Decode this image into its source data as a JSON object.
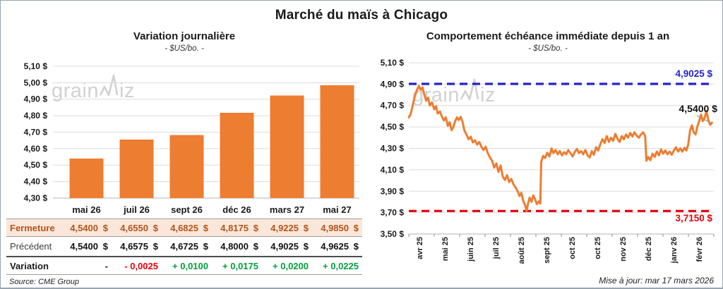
{
  "main_title": "Marché du maïs à Chicago",
  "watermark": {
    "prefix": "grain",
    "suffix": "iz"
  },
  "source": "Source: CME Group",
  "updated": "Mise à jour: mar 17 mars 2026",
  "colors": {
    "bar": "#ED7D31",
    "line": "#ED7D31",
    "high": "#2323CB",
    "low": "#E8000D",
    "up": "#00A03C",
    "down": "#E8000D",
    "close_bg": "#FBE7DA",
    "close_text": "#B3541A",
    "grid": "#DCDCDC",
    "axis": "#B3B3B3"
  },
  "table": {
    "columns": [
      "mai 26",
      "juil 26",
      "sept 26",
      "déc 26",
      "mars 27",
      "mai 27"
    ],
    "rows": [
      {
        "label": "Fermeture",
        "style": "close",
        "values": [
          "4,5400 $",
          "4,6550 $",
          "4,6825 $",
          "4,8175 $",
          "4,9225 $",
          "4,9850 $"
        ]
      },
      {
        "label": "Précédent",
        "style": "prev",
        "values": [
          "4,5400 $",
          "4,6575 $",
          "4,6725 $",
          "4,8000 $",
          "4,9025 $",
          "4,9625 $"
        ]
      },
      {
        "label": "Variation",
        "style": "var",
        "values": [
          "-",
          "- 0,0025",
          "+ 0,0100",
          "+ 0,0175",
          "+ 0,0200",
          "+ 0,0225"
        ],
        "value_styles": [
          "neutral",
          "down",
          "up",
          "up",
          "up",
          "up"
        ]
      }
    ]
  },
  "chart_data": [
    {
      "type": "bar",
      "title": "Variation journalière",
      "subtitle": "- $US/bo. -",
      "categories": [
        "mai 26",
        "juil 26",
        "sept 26",
        "déc 26",
        "mars 27",
        "mai 27"
      ],
      "values": [
        4.54,
        4.655,
        4.6825,
        4.8175,
        4.9225,
        4.985
      ],
      "ylim": [
        4.3,
        5.1
      ],
      "grid": true,
      "yticks": [
        [
          5.1,
          "5,10 $"
        ],
        [
          5.0,
          "5,00 $"
        ],
        [
          4.9,
          "4,90 $"
        ],
        [
          4.8,
          "4,80 $"
        ],
        [
          4.7,
          "4,70 $"
        ],
        [
          4.6,
          "4,60 $"
        ],
        [
          4.5,
          "4,50 $"
        ],
        [
          4.4,
          "4,40 $"
        ],
        [
          4.3,
          "4,30 $"
        ]
      ]
    },
    {
      "type": "line",
      "title": "Comportement échéance immédiate depuis 1 an",
      "subtitle": "- $US/bo. -",
      "x_labels": [
        "avr 25",
        "mai 25",
        "juin 25",
        "juil 25",
        "août 25",
        "sept 25",
        "oct 25",
        "oct 25",
        "nov 25",
        "déc 25",
        "janv 26",
        "févr 26"
      ],
      "ylim": [
        3.5,
        5.1
      ],
      "grid": true,
      "yticks": [
        [
          5.1,
          "5,10 $"
        ],
        [
          4.9,
          "4,90 $"
        ],
        [
          4.7,
          "4,70 $"
        ],
        [
          4.5,
          "4,50 $"
        ],
        [
          4.3,
          "4,30 $"
        ],
        [
          4.1,
          "4,10 $"
        ],
        [
          3.9,
          "3,90 $"
        ],
        [
          3.7,
          "3,70 $"
        ],
        [
          3.5,
          "3,50 $"
        ]
      ],
      "ref_lines": [
        {
          "value": 4.9025,
          "label": "4,9025 $",
          "role": "high"
        },
        {
          "value": 3.715,
          "label": "3,7150 $",
          "role": "low"
        }
      ],
      "last_value": 4.54,
      "last_label": "4,5400 $",
      "points": [
        [
          0.0,
          4.59
        ],
        [
          0.006,
          4.62
        ],
        [
          0.012,
          4.69
        ],
        [
          0.018,
          4.77
        ],
        [
          0.026,
          4.84
        ],
        [
          0.033,
          4.885
        ],
        [
          0.039,
          4.845
        ],
        [
          0.045,
          4.87
        ],
        [
          0.051,
          4.8
        ],
        [
          0.057,
          4.745
        ],
        [
          0.063,
          4.775
        ],
        [
          0.069,
          4.7
        ],
        [
          0.076,
          4.73
        ],
        [
          0.083,
          4.665
        ],
        [
          0.089,
          4.695
        ],
        [
          0.095,
          4.625
        ],
        [
          0.102,
          4.645
        ],
        [
          0.108,
          4.6
        ],
        [
          0.115,
          4.56
        ],
        [
          0.121,
          4.59
        ],
        [
          0.128,
          4.51
        ],
        [
          0.134,
          4.545
        ],
        [
          0.14,
          4.47
        ],
        [
          0.146,
          4.5
        ],
        [
          0.152,
          4.555
        ],
        [
          0.158,
          4.59
        ],
        [
          0.164,
          4.565
        ],
        [
          0.17,
          4.595
        ],
        [
          0.176,
          4.55
        ],
        [
          0.182,
          4.47
        ],
        [
          0.189,
          4.43
        ],
        [
          0.196,
          4.385
        ],
        [
          0.203,
          4.41
        ],
        [
          0.21,
          4.355
        ],
        [
          0.217,
          4.375
        ],
        [
          0.224,
          4.335
        ],
        [
          0.231,
          4.36
        ],
        [
          0.238,
          4.315
        ],
        [
          0.245,
          4.285
        ],
        [
          0.252,
          4.315
        ],
        [
          0.259,
          4.255
        ],
        [
          0.266,
          4.215
        ],
        [
          0.273,
          4.185
        ],
        [
          0.28,
          4.12
        ],
        [
          0.287,
          4.16
        ],
        [
          0.294,
          4.08
        ],
        [
          0.301,
          4.14
        ],
        [
          0.308,
          4.035
        ],
        [
          0.315,
          4.005
        ],
        [
          0.322,
          4.05
        ],
        [
          0.329,
          3.985
        ],
        [
          0.336,
          4.015
        ],
        [
          0.343,
          3.965
        ],
        [
          0.35,
          3.935
        ],
        [
          0.357,
          3.9
        ],
        [
          0.363,
          3.855
        ],
        [
          0.369,
          3.885
        ],
        [
          0.375,
          3.81
        ],
        [
          0.381,
          3.77
        ],
        [
          0.386,
          3.715
        ],
        [
          0.391,
          3.785
        ],
        [
          0.396,
          3.84
        ],
        [
          0.402,
          3.8
        ],
        [
          0.408,
          3.86
        ],
        [
          0.414,
          3.825
        ],
        [
          0.42,
          3.78
        ],
        [
          0.426,
          3.805
        ],
        [
          0.431,
          3.785
        ],
        [
          0.434,
          4.17
        ],
        [
          0.44,
          4.23
        ],
        [
          0.447,
          4.21
        ],
        [
          0.454,
          4.26
        ],
        [
          0.461,
          4.225
        ],
        [
          0.468,
          4.3
        ],
        [
          0.474,
          4.255
        ],
        [
          0.481,
          4.285
        ],
        [
          0.488,
          4.245
        ],
        [
          0.495,
          4.275
        ],
        [
          0.502,
          4.235
        ],
        [
          0.509,
          4.265
        ],
        [
          0.516,
          4.245
        ],
        [
          0.523,
          4.285
        ],
        [
          0.53,
          4.255
        ],
        [
          0.537,
          4.225
        ],
        [
          0.544,
          4.265
        ],
        [
          0.551,
          4.295
        ],
        [
          0.558,
          4.255
        ],
        [
          0.565,
          4.275
        ],
        [
          0.572,
          4.245
        ],
        [
          0.579,
          4.285
        ],
        [
          0.586,
          4.235
        ],
        [
          0.593,
          4.215
        ],
        [
          0.6,
          4.275
        ],
        [
          0.607,
          4.24
        ],
        [
          0.614,
          4.31
        ],
        [
          0.621,
          4.28
        ],
        [
          0.628,
          4.34
        ],
        [
          0.635,
          4.385
        ],
        [
          0.642,
          4.35
        ],
        [
          0.649,
          4.415
        ],
        [
          0.656,
          4.36
        ],
        [
          0.663,
          4.4
        ],
        [
          0.67,
          4.37
        ],
        [
          0.677,
          4.435
        ],
        [
          0.684,
          4.39
        ],
        [
          0.691,
          4.36
        ],
        [
          0.698,
          4.415
        ],
        [
          0.705,
          4.385
        ],
        [
          0.712,
          4.43
        ],
        [
          0.719,
          4.4
        ],
        [
          0.726,
          4.445
        ],
        [
          0.733,
          4.41
        ],
        [
          0.74,
          4.45
        ],
        [
          0.747,
          4.42
        ],
        [
          0.754,
          4.4
        ],
        [
          0.761,
          4.43
        ],
        [
          0.768,
          4.45
        ],
        [
          0.775,
          4.415
        ],
        [
          0.779,
          4.185
        ],
        [
          0.785,
          4.22
        ],
        [
          0.792,
          4.19
        ],
        [
          0.799,
          4.25
        ],
        [
          0.806,
          4.22
        ],
        [
          0.813,
          4.27
        ],
        [
          0.82,
          4.235
        ],
        [
          0.827,
          4.29
        ],
        [
          0.834,
          4.25
        ],
        [
          0.841,
          4.28
        ],
        [
          0.848,
          4.245
        ],
        [
          0.855,
          4.27
        ],
        [
          0.862,
          4.24
        ],
        [
          0.869,
          4.28
        ],
        [
          0.876,
          4.31
        ],
        [
          0.883,
          4.27
        ],
        [
          0.89,
          4.3
        ],
        [
          0.897,
          4.27
        ],
        [
          0.904,
          4.305
        ],
        [
          0.91,
          4.28
        ],
        [
          0.916,
          4.335
        ],
        [
          0.922,
          4.465
        ],
        [
          0.928,
          4.515
        ],
        [
          0.934,
          4.45
        ],
        [
          0.94,
          4.43
        ],
        [
          0.946,
          4.505
        ],
        [
          0.952,
          4.555
        ],
        [
          0.958,
          4.615
        ],
        [
          0.964,
          4.555
        ],
        [
          0.97,
          4.585
        ],
        [
          0.976,
          4.65
        ],
        [
          0.982,
          4.565
        ],
        [
          0.988,
          4.52
        ],
        [
          0.994,
          4.54
        ]
      ]
    }
  ]
}
